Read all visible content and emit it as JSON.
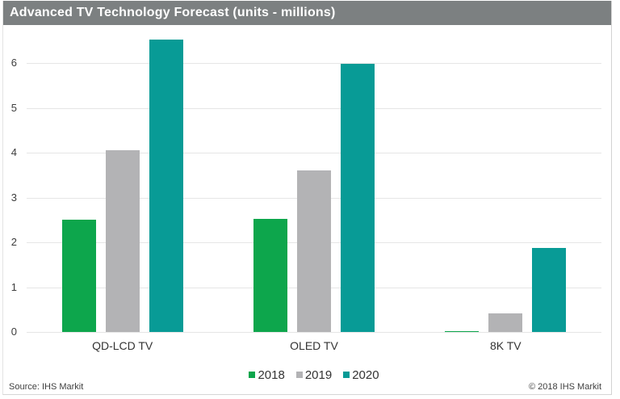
{
  "title": "Advanced TV Technology Forecast (units - millions)",
  "chart_data": {
    "type": "bar",
    "title": "Advanced TV Technology Forecast (units - millions)",
    "categories": [
      "QD-LCD TV",
      "OLED TV",
      "8K TV"
    ],
    "series": [
      {
        "name": "2018",
        "color": "#0da64c",
        "values": [
          2.5,
          2.52,
          0.02
        ]
      },
      {
        "name": "2019",
        "color": "#b3b3b5",
        "values": [
          4.05,
          3.6,
          0.42
        ]
      },
      {
        "name": "2020",
        "color": "#089b96",
        "values": [
          6.52,
          5.98,
          1.87
        ]
      }
    ],
    "xlabel": "",
    "ylabel": "",
    "ylim": [
      0,
      6.685
    ],
    "yticks": [
      0,
      1,
      2,
      3,
      4,
      5,
      6
    ],
    "grid": true,
    "legend_position": "bottom"
  },
  "footer": {
    "source": "Source: IHS Markit",
    "copyright": "© 2018 IHS Markit"
  },
  "colors": {
    "title_bar": "#7c8081",
    "gridline": "#e6e6e6",
    "axis_text": "#3d3d3d"
  }
}
